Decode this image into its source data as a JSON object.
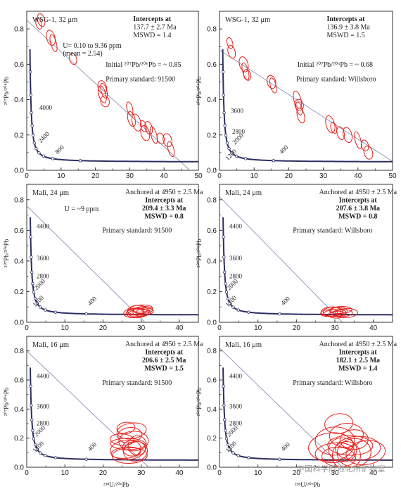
{
  "chart_data": [
    {
      "type": "scatter",
      "sample": "WSG-1, 32 μm",
      "lines": [
        "Intercepts at",
        "137.7 ± 2.7 Ma",
        "MSWD = 1.4"
      ],
      "u_note": [
        "U= 0.10 to 9.36 ppm",
        "(mean = 2.54)"
      ],
      "initial": "Initial ²⁰⁷Pb/²⁰⁶Pb = ~ 0.85",
      "standard": "Primary standard: 91500",
      "xlim": [
        0,
        50
      ],
      "ylim": [
        0,
        0.9
      ],
      "xticks": [
        "0",
        "10",
        "20",
        "30",
        "40",
        "50"
      ],
      "yticks": [
        "0.0",
        "0.2",
        "0.4",
        "0.6",
        "0.8"
      ],
      "concordia_labels": [
        "4000",
        "2400",
        "800"
      ],
      "discordia": [
        [
          0,
          0.85
        ],
        [
          47.5,
          0
        ]
      ],
      "ellipses": [
        [
          3.5,
          0.83
        ],
        [
          4.2,
          0.85
        ],
        [
          7,
          0.75
        ],
        [
          7.8,
          0.72
        ],
        [
          13.5,
          0.63
        ],
        [
          22,
          0.47
        ],
        [
          22.5,
          0.45
        ],
        [
          22,
          0.43
        ],
        [
          22.8,
          0.39
        ],
        [
          30,
          0.35
        ],
        [
          30.5,
          0.29
        ],
        [
          32,
          0.27
        ],
        [
          34,
          0.25
        ],
        [
          35.5,
          0.24
        ],
        [
          34.5,
          0.21
        ],
        [
          37,
          0.2
        ],
        [
          39,
          0.18
        ],
        [
          41,
          0.17
        ],
        [
          42,
          0.12
        ]
      ]
    },
    {
      "type": "scatter",
      "sample": "WSG-1, 32 μm",
      "lines": [
        "Intercepts at",
        "136.9 ± 3.8 Ma",
        "MSWD = 1.5"
      ],
      "initial": "Initial ²⁰⁷Pb/²⁰⁶Pb = ~ 0.68",
      "standard": "Primary standard: Willsboro",
      "xlim": [
        0,
        50
      ],
      "ylim": [
        0,
        0.9
      ],
      "xticks": [
        "0",
        "10",
        "20",
        "30",
        "40",
        "50"
      ],
      "yticks": [
        "0.0",
        "0.2",
        "0.4",
        "0.6",
        "0.8"
      ],
      "concordia_labels": [
        "3600",
        "2800",
        "2000",
        "1200",
        "400"
      ],
      "discordia": [
        [
          0,
          0.68
        ],
        [
          54,
          0
        ]
      ],
      "ellipses": [
        [
          3,
          0.72
        ],
        [
          3.5,
          0.67
        ],
        [
          7,
          0.6
        ],
        [
          7.5,
          0.56
        ],
        [
          8,
          0.54
        ],
        [
          15,
          0.5
        ],
        [
          15.5,
          0.48
        ],
        [
          22.5,
          0.4
        ],
        [
          23,
          0.37
        ],
        [
          23,
          0.35
        ],
        [
          23.5,
          0.31
        ],
        [
          32,
          0.26
        ],
        [
          33,
          0.24
        ],
        [
          35,
          0.21
        ],
        [
          37,
          0.2
        ],
        [
          40,
          0.17
        ],
        [
          42,
          0.14
        ],
        [
          43,
          0.1
        ]
      ]
    },
    {
      "type": "scatter",
      "sample": "Mali, 24 μm",
      "lines": [
        "Anchored at 4950 ± 2.5 Ma",
        "Intercepts at",
        "209.4 ± 3.3 Ma",
        "MSWD = 0.8"
      ],
      "u_note": [
        "U = ~9 ppm"
      ],
      "standard": "Primary standard: 91500",
      "xlim": [
        0,
        45
      ],
      "ylim": [
        0,
        0.9
      ],
      "xticks": [
        "0",
        "10",
        "20",
        "30",
        "40"
      ],
      "yticks": [
        "0.0",
        "0.2",
        "0.4",
        "0.6",
        "0.8"
      ],
      "concordia_labels": [
        "4400",
        "3600",
        "2800",
        "2000",
        "1200",
        "400"
      ],
      "discordia": [
        [
          0,
          0.76
        ],
        [
          31,
          0
        ]
      ],
      "ellipses": [
        [
          28.5,
          0.07
        ],
        [
          29,
          0.08
        ],
        [
          29.5,
          0.06
        ],
        [
          30,
          0.07
        ],
        [
          30.5,
          0.08
        ],
        [
          29,
          0.06
        ],
        [
          31,
          0.07
        ],
        [
          28,
          0.06
        ],
        [
          30,
          0.09
        ]
      ]
    },
    {
      "type": "scatter",
      "sample": "Mali, 24 μm",
      "lines": [
        "Anchored at 4950 ± 2.5 Ma",
        "Intercepts at",
        "207.6 ± 3.8 Ma",
        "MSWD = 0.8"
      ],
      "standard": "Primary standard: Willsboro",
      "xlim": [
        0,
        45
      ],
      "ylim": [
        0,
        0.9
      ],
      "xticks": [
        "0",
        "10",
        "20",
        "30",
        "40"
      ],
      "yticks": [
        "0.0",
        "0.2",
        "0.4",
        "0.6",
        "0.8"
      ],
      "concordia_labels": [
        "4400",
        "3600",
        "2800",
        "2000",
        "1200",
        "400"
      ],
      "discordia": [
        [
          0,
          0.82
        ],
        [
          32,
          0
        ]
      ],
      "ellipses": [
        [
          28.5,
          0.06
        ],
        [
          29.5,
          0.07
        ],
        [
          30,
          0.06
        ],
        [
          31,
          0.07
        ],
        [
          32,
          0.06
        ],
        [
          33,
          0.06
        ],
        [
          30.5,
          0.05
        ],
        [
          29,
          0.07
        ],
        [
          31.5,
          0.08
        ]
      ]
    },
    {
      "type": "scatter",
      "sample": "Mali, 16 μm",
      "lines": [
        "Anchored at 4950 ± 2.5 Ma",
        "Intercepts at",
        "206.6 ± 2.5 Ma",
        "MSWD = 1.5"
      ],
      "standard": "Primary standard: 91500",
      "xlim": [
        0,
        45
      ],
      "ylim": [
        0,
        0.9
      ],
      "xticks": [
        "0",
        "10",
        "20",
        "30",
        "40"
      ],
      "yticks": [
        "0.0",
        "0.2",
        "0.4",
        "0.6",
        "0.8"
      ],
      "concordia_labels": [
        "4400",
        "3600",
        "2800",
        "2000",
        "1200",
        "400"
      ],
      "discordia": [
        [
          0,
          0.8
        ],
        [
          32,
          0
        ]
      ],
      "ellipses": [
        [
          26,
          0.27
        ],
        [
          27,
          0.22
        ],
        [
          28,
          0.18
        ],
        [
          26.5,
          0.16
        ],
        [
          27.5,
          0.13
        ],
        [
          28.5,
          0.11
        ],
        [
          26,
          0.1
        ],
        [
          27,
          0.08
        ],
        [
          29,
          0.15
        ],
        [
          25,
          0.19
        ],
        [
          27.5,
          0.25
        ],
        [
          26.5,
          0.12
        ]
      ]
    },
    {
      "type": "scatter",
      "sample": "Mali, 16 μm",
      "lines": [
        "Anchored at 4950 ± 2.5 Ma",
        "Intercepts at",
        "182.1 ± 2.5 Ma",
        "MSWD = 1.4"
      ],
      "standard": "Primary standard: Willsboro",
      "xlim": [
        0,
        45
      ],
      "ylim": [
        0,
        0.9
      ],
      "xticks": [
        "0",
        "10",
        "20",
        "30",
        "40"
      ],
      "yticks": [
        "0.0",
        "0.2",
        "0.4",
        "0.6",
        "0.8"
      ],
      "concordia_labels": [
        "4400",
        "3600",
        "2800",
        "2000",
        "1200",
        "400"
      ],
      "discordia": [
        [
          0,
          0.82
        ],
        [
          32,
          0
        ]
      ],
      "ellipses": [
        [
          31,
          0.3
        ],
        [
          33,
          0.22
        ],
        [
          30,
          0.18
        ],
        [
          34,
          0.15
        ],
        [
          32,
          0.12
        ],
        [
          35,
          0.1
        ],
        [
          30,
          0.1
        ],
        [
          36,
          0.13
        ],
        [
          33,
          0.08
        ],
        [
          31,
          0.07
        ],
        [
          38,
          0.1
        ],
        [
          29,
          0.14
        ],
        [
          35,
          0.19
        ]
      ]
    }
  ],
  "axis_labels": {
    "y": "²⁰⁷Pb/²⁰⁶Pb",
    "x": "²³⁸U/²⁰⁶Pb"
  },
  "watermark": "中国科学院地化所矿物室",
  "colors": {
    "ellipse": "#e8201c",
    "concordia": "#2b2f63",
    "discordia": "#8a93b8"
  }
}
